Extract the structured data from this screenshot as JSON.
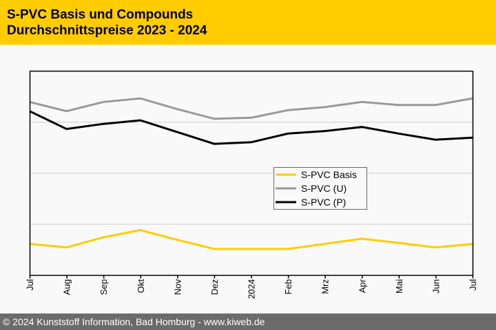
{
  "header": {
    "title_line1": "S-PVC Basis und Compounds",
    "title_line2": "Durchschnittspreise 2023 - 2024"
  },
  "footer": {
    "text": "© 2024 Kunststoff Information, Bad Homburg - www.kiweb.de"
  },
  "chart_data": {
    "type": "line",
    "title": "S-PVC Basis und Compounds Durchschnittspreise 2023 - 2024",
    "xlabel": "",
    "ylabel": "",
    "y_tick_labels_shown": false,
    "ylim": [
      0,
      4
    ],
    "y_gridlines": [
      1,
      2,
      3
    ],
    "grid": true,
    "legend_position": "center-right",
    "categories": [
      "Jul",
      "Aug",
      "Sep",
      "Okt",
      "Nov",
      "Dez",
      "2024",
      "Feb",
      "Mrz",
      "Apr",
      "Mai",
      "Jun",
      "Jul"
    ],
    "series": [
      {
        "name": "S-PVC Basis",
        "color": "#ffcc00",
        "values": [
          0.61,
          0.54,
          0.74,
          0.88,
          0.69,
          0.51,
          0.51,
          0.51,
          0.61,
          0.71,
          0.63,
          0.54,
          0.61
        ]
      },
      {
        "name": "S-PVC (U)",
        "color": "#999999",
        "values": [
          3.39,
          3.21,
          3.39,
          3.46,
          3.25,
          3.06,
          3.08,
          3.23,
          3.29,
          3.39,
          3.33,
          3.33,
          3.46
        ]
      },
      {
        "name": "S-PVC (P)",
        "color": "#000000",
        "values": [
          3.21,
          2.86,
          2.96,
          3.03,
          2.8,
          2.57,
          2.6,
          2.77,
          2.82,
          2.9,
          2.77,
          2.65,
          2.69
        ]
      }
    ]
  }
}
